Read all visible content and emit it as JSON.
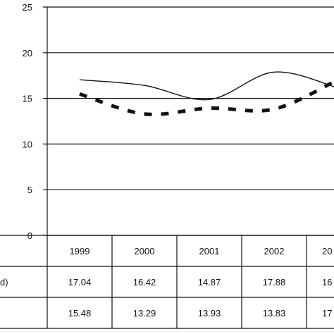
{
  "chart_data": {
    "type": "line",
    "title": "",
    "xlabel": "",
    "ylabel": "",
    "ylim": [
      0,
      25
    ],
    "yticks": [
      "0",
      "5",
      "10",
      "15",
      "20",
      "25"
    ],
    "grid": true,
    "categories": [
      "1999",
      "2000",
      "2001",
      "2002",
      "20"
    ],
    "series": [
      {
        "label_visible": "d)",
        "style": "solid",
        "values": [
          17.04,
          16.42,
          14.87,
          17.88,
          16.1
        ],
        "table_values": [
          "17.04",
          "16.42",
          "14.87",
          "17.88",
          "16"
        ]
      },
      {
        "label_visible": "",
        "style": "dashed",
        "values": [
          15.48,
          13.29,
          13.93,
          13.83,
          17.1
        ],
        "table_values": [
          "15.48",
          "13.29",
          "13.93",
          "13.83",
          "17"
        ]
      }
    ]
  }
}
